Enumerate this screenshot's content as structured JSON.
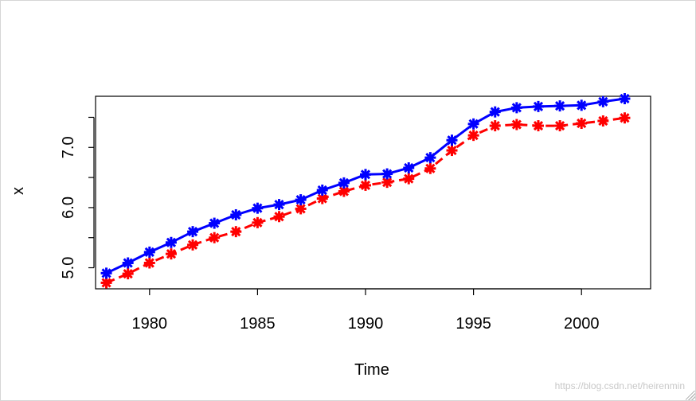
{
  "chart_data": {
    "type": "line",
    "title": "",
    "xlabel": "Time",
    "ylabel": "x",
    "xlim": [
      1977.5,
      2003.2
    ],
    "ylim": [
      4.65,
      7.85
    ],
    "x_ticks": [
      1980,
      1985,
      1990,
      1995,
      2000
    ],
    "x_tick_labels": [
      "1980",
      "1985",
      "1990",
      "1995",
      "2000"
    ],
    "y_ticks": [
      5.0,
      6.0,
      7.0
    ],
    "y_tick_labels": [
      "5.0",
      "6.0",
      "7.0"
    ],
    "y_minor_ticks": [
      5.5,
      6.5,
      7.5
    ],
    "grid": false,
    "legend": "none",
    "x": [
      1978,
      1979,
      1980,
      1981,
      1982,
      1983,
      1984,
      1985,
      1986,
      1987,
      1988,
      1989,
      1990,
      1991,
      1992,
      1993,
      1994,
      1995,
      1996,
      1997,
      1998,
      1999,
      2000,
      2001,
      2002
    ],
    "series": [
      {
        "color": "#ff0000",
        "line": "dashed",
        "marker": "asterisk",
        "values": [
          4.75,
          4.9,
          5.08,
          5.23,
          5.38,
          5.5,
          5.6,
          5.75,
          5.85,
          5.98,
          6.15,
          6.27,
          6.37,
          6.42,
          6.48,
          6.65,
          6.95,
          7.2,
          7.36,
          7.38,
          7.36,
          7.36,
          7.4,
          7.44,
          7.49
        ]
      },
      {
        "color": "#0000ff",
        "line": "solid",
        "marker": "asterisk",
        "values": [
          4.91,
          5.08,
          5.26,
          5.42,
          5.6,
          5.74,
          5.88,
          5.99,
          6.05,
          6.13,
          6.29,
          6.41,
          6.55,
          6.56,
          6.66,
          6.83,
          7.12,
          7.39,
          7.59,
          7.66,
          7.68,
          7.69,
          7.7,
          7.76,
          7.81
        ]
      }
    ]
  },
  "watermark": "https://blog.csdn.net/heirenmin"
}
